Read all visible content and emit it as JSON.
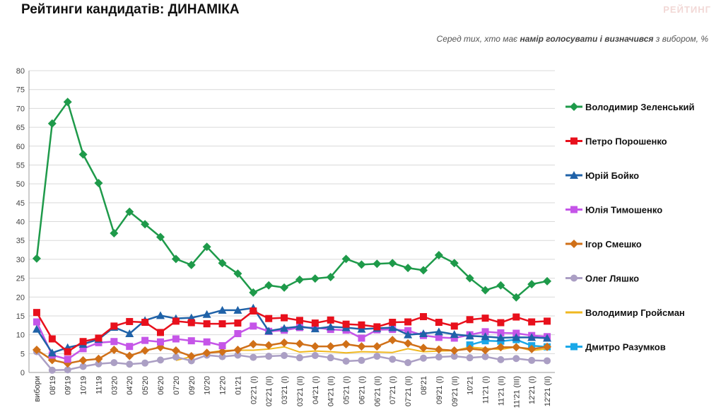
{
  "header": {
    "title": "Рейтинги кандидатів: ДИНАМІКА",
    "logo": "РЕЙТИНГ",
    "subtitle_pre": "Серед тих, хто має ",
    "subtitle_bold": "намір голосувати і визначився",
    "subtitle_post": " з вибором, %"
  },
  "chart_data": {
    "type": "line",
    "title": "Рейтинги кандидатів: ДИНАМІКА",
    "ylabel": "",
    "xlabel": "",
    "ylim": [
      0,
      80
    ],
    "yticks": [
      0,
      5,
      10,
      15,
      20,
      25,
      30,
      35,
      40,
      45,
      50,
      55,
      60,
      65,
      70,
      75,
      80
    ],
    "grid": true,
    "legend_position": "right",
    "categories": [
      "вибори",
      "08'19",
      "09'19",
      "10'19",
      "11'19",
      "03'20",
      "04'20",
      "05'20",
      "06'20",
      "07'20",
      "09'20",
      "10'20",
      "12'20",
      "01'21",
      "02'21 (I)",
      "02'21 (II)",
      "03'21 (I)",
      "03'21 (II)",
      "04'21 (I)",
      "04'21 (II)",
      "05'21 (I)",
      "06'21 (I)",
      "06'21 (II)",
      "07'21 (I)",
      "07'21 (II)",
      "08'21",
      "09'21 (I)",
      "09'21 (II)",
      "10'21",
      "11'21 (I)",
      "11'21 (II)",
      "11'21 (III)",
      "12'21 (I)",
      "12'21 (II)"
    ],
    "series": [
      {
        "name": "Володимир Зеленський",
        "color": "#1e9a4a",
        "marker": "diamond",
        "values": [
          30.2,
          66,
          71.7,
          57.8,
          50.2,
          36.9,
          42.6,
          39.3,
          35.9,
          30.1,
          28.5,
          33.3,
          29,
          26.2,
          21.2,
          23.1,
          22.5,
          24.6,
          24.9,
          25.3,
          30.1,
          28.6,
          28.8,
          29.0,
          27.7,
          27.1,
          31.1,
          29,
          25,
          21.8,
          23.1,
          19.9,
          23.4,
          24.2
        ]
      },
      {
        "name": "Петро Порошенко",
        "color": "#e8101c",
        "marker": "square",
        "values": [
          15.9,
          8.9,
          5.5,
          8.2,
          9.1,
          12.3,
          13.5,
          13.3,
          10.6,
          13.6,
          13.2,
          12.9,
          12.9,
          13.1,
          16.3,
          14.3,
          14.5,
          13.8,
          13.1,
          13.9,
          12.8,
          12.6,
          12.1,
          13.3,
          13.4,
          14.8,
          13.3,
          12.3,
          14,
          14.4,
          13.2,
          14.7,
          13.4,
          13.6
        ]
      },
      {
        "name": "Юрій Бойко",
        "color": "#1f62a8",
        "marker": "triangle",
        "values": [
          11.5,
          5.2,
          6.6,
          7.5,
          8.8,
          12,
          10.3,
          13.8,
          15.1,
          14.3,
          14.5,
          15.4,
          16.5,
          16.5,
          17.1,
          11,
          11.7,
          12.2,
          11.6,
          12.1,
          11.9,
          11.5,
          11.7,
          11.9,
          10,
          10.3,
          10.8,
          10.1,
          9.7,
          9.5,
          9.2,
          9.3,
          9.3,
          9.1
        ]
      },
      {
        "name": "Юлія Тимошенко",
        "color": "#c555e8",
        "marker": "square",
        "values": [
          13.4,
          4.6,
          3.5,
          6.3,
          7.9,
          8.2,
          6.9,
          8.5,
          8.1,
          8.9,
          8.4,
          8.1,
          7.1,
          10.3,
          12.3,
          10.9,
          11.2,
          11.9,
          11.9,
          11.4,
          11.2,
          9.1,
          11.3,
          11.4,
          11.1,
          9.8,
          9.3,
          9.1,
          10,
          10.8,
          10.5,
          10.4,
          9.8,
          9.5
        ]
      },
      {
        "name": "Ігор Смешко",
        "color": "#d07018",
        "marker": "diamond",
        "values": [
          6,
          3.3,
          2.4,
          3.2,
          3.6,
          6,
          4.4,
          5.8,
          6.7,
          5.8,
          4.3,
          5.2,
          5.5,
          6,
          7.5,
          7.2,
          7.9,
          7.6,
          6.9,
          6.9,
          7.5,
          6.9,
          6.9,
          8.6,
          7.7,
          6.5,
          6.1,
          5.8,
          6.3,
          5.9,
          6.7,
          6.7,
          6.2,
          6.8
        ]
      },
      {
        "name": "Олег Ляшко",
        "color": "#ab9fc4",
        "marker": "circle",
        "values": [
          5.5,
          0.6,
          0.7,
          1.6,
          2.3,
          2.6,
          2.2,
          2.5,
          3.3,
          4.1,
          3.1,
          4.6,
          4.2,
          4.6,
          4,
          4.3,
          4.5,
          3.9,
          4.5,
          3.9,
          3,
          3.2,
          4.3,
          3.5,
          2.6,
          3.8,
          4.1,
          4.3,
          3.9,
          4.2,
          3.4,
          3.7,
          3.2,
          3.1
        ]
      },
      {
        "name": "Володимир Гройсман",
        "color": "#f0b820",
        "marker": "none",
        "start": 9,
        "values": [
          null,
          null,
          null,
          null,
          null,
          null,
          null,
          null,
          null,
          3.2,
          4.2,
          5.2,
          5.8,
          5.9,
          5.9,
          6.2,
          6.8,
          5.4,
          5.7,
          5.5,
          5.2,
          5.5,
          5.4,
          5.3,
          6.3,
          5.5,
          5.7,
          5.8,
          6.7,
          6.4,
          6.1,
          6.8,
          5.8,
          6.3
        ]
      },
      {
        "name": "Дмитро Разумков",
        "color": "#1aa8e8",
        "marker": "square",
        "values": [
          null,
          null,
          null,
          null,
          null,
          null,
          null,
          null,
          null,
          null,
          null,
          null,
          null,
          null,
          null,
          null,
          null,
          null,
          null,
          null,
          null,
          null,
          null,
          null,
          null,
          null,
          null,
          null,
          7.3,
          8.4,
          8.3,
          8.7,
          7.1,
          6.8
        ]
      }
    ]
  }
}
